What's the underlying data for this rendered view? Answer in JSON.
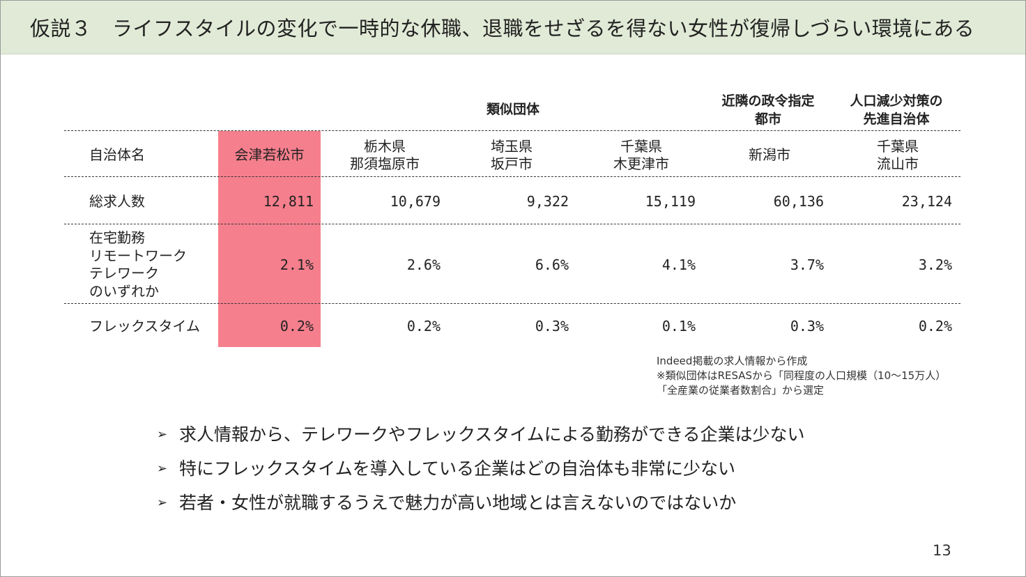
{
  "header": {
    "title": "仮説３　ライフスタイルの変化で一時的な休職、退職をせざるを得ない女性が復帰しづらい環境にある"
  },
  "groups": {
    "similar": "類似団体",
    "neighbor": [
      "近隣の政令指定",
      "都市"
    ],
    "advanced": [
      "人口減少対策の",
      "先進自治体"
    ]
  },
  "table": {
    "columns": [
      {
        "label": [
          "自治体名"
        ]
      },
      {
        "label": [
          "会津若松市"
        ]
      },
      {
        "label": [
          "栃木県",
          "那須塩原市"
        ]
      },
      {
        "label": [
          "埼玉県",
          "坂戸市"
        ]
      },
      {
        "label": [
          "千葉県",
          "木更津市"
        ]
      },
      {
        "label": [
          "新潟市"
        ]
      },
      {
        "label": [
          "千葉県",
          "流山市"
        ]
      }
    ],
    "rows": [
      {
        "label": [
          "総求人数"
        ],
        "values": [
          "12,811",
          "10,679",
          "9,322",
          "15,119",
          "60,136",
          "23,124"
        ]
      },
      {
        "label": [
          "在宅勤務",
          "リモートワーク",
          "テレワーク",
          "のいずれか"
        ],
        "values": [
          "2.1%",
          "2.6%",
          "6.6%",
          "4.1%",
          "3.7%",
          "3.2%"
        ]
      },
      {
        "label": [
          "フレックスタイム"
        ],
        "values": [
          "0.2%",
          "0.2%",
          "0.3%",
          "0.1%",
          "0.3%",
          "0.2%"
        ]
      }
    ]
  },
  "note": [
    "Indeed掲載の求人情報から作成",
    "※類似団体はRESASから「同程度の人口規模（10～15万人）",
    "「全産業の従業者数割合」から選定"
  ],
  "bullets": [
    "求人情報から、テレワークやフレックスタイムによる勤務ができる企業は少ない",
    "特にフレックスタイムを導入している企業はどの自治体も非常に少ない",
    "若者・女性が就職するうえで魅力が高い地域とは言えないのではないか"
  ],
  "bullet_marker": "➢",
  "page_number": "13",
  "colors": {
    "header_bg": "#e1ead6",
    "highlight": "#f67f8d"
  }
}
